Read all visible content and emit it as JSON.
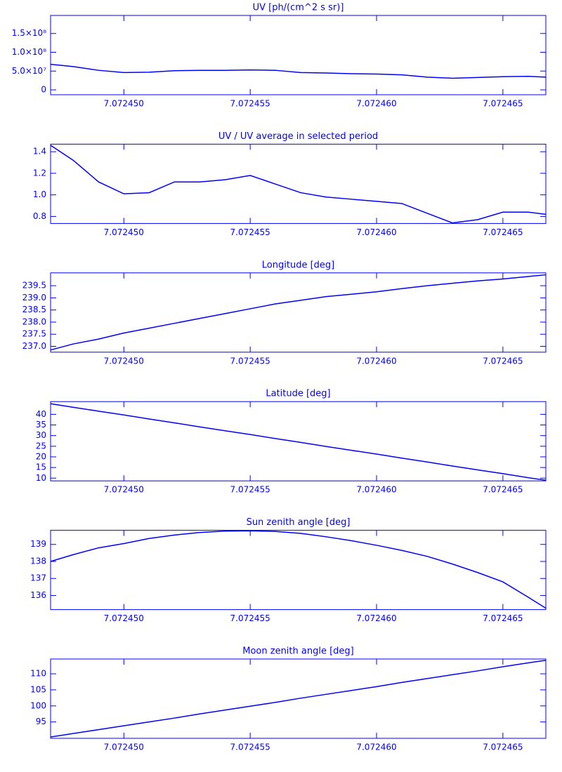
{
  "chart_data": [
    {
      "type": "line",
      "title": "UV [ph/(cm^2 s sr)]",
      "color": "#0000ff",
      "x": [
        7.0724471,
        7.072448,
        7.072449,
        7.07245,
        7.072451,
        7.072452,
        7.072453,
        7.072454,
        7.072455,
        7.072456,
        7.072457,
        7.072458,
        7.072459,
        7.07246,
        7.072461,
        7.072462,
        7.072463,
        7.072464,
        7.072465,
        7.072466,
        7.0724667
      ],
      "values": [
        68000000,
        62000000,
        52000000,
        46000000,
        47000000,
        51000000,
        52000000,
        52000000,
        53000000,
        52000000,
        46000000,
        45000000,
        43000000,
        42000000,
        40000000,
        34000000,
        31000000,
        33000000,
        35000000,
        36000000,
        34000000
      ],
      "xlim": [
        7.0724471,
        7.0724667
      ],
      "xticks": [
        {
          "value": 7.07245,
          "label": "7.072450"
        },
        {
          "value": 7.072455,
          "label": "7.072455"
        },
        {
          "value": 7.07246,
          "label": "7.072460"
        },
        {
          "value": 7.072465,
          "label": "7.072465"
        }
      ],
      "ylim": [
        -13000000,
        198000000
      ],
      "yticks": [
        0,
        {
          "value": 50000000,
          "label": "5.0×10⁷"
        },
        {
          "value": 100000000,
          "label": "1.0×10⁸"
        },
        {
          "value": 150000000,
          "label": "1.5×10⁸"
        }
      ]
    },
    {
      "type": "line",
      "title": "UV / UV average in selected period",
      "color": "#0000ff",
      "x": [
        7.0724471,
        7.072448,
        7.072449,
        7.07245,
        7.072451,
        7.072452,
        7.072453,
        7.072454,
        7.072455,
        7.072456,
        7.072457,
        7.072458,
        7.072459,
        7.07246,
        7.072461,
        7.072462,
        7.072463,
        7.072464,
        7.072465,
        7.072466,
        7.0724667
      ],
      "values": [
        1.46,
        1.32,
        1.12,
        1.01,
        1.02,
        1.12,
        1.12,
        1.14,
        1.18,
        1.1,
        1.02,
        0.98,
        0.96,
        0.94,
        0.92,
        0.83,
        0.74,
        0.77,
        0.84,
        0.84,
        0.82
      ],
      "xlim": [
        7.0724471,
        7.0724667
      ],
      "xticks": [
        {
          "value": 7.07245,
          "label": "7.072450"
        },
        {
          "value": 7.072455,
          "label": "7.072455"
        },
        {
          "value": 7.07246,
          "label": "7.072460"
        },
        {
          "value": 7.072465,
          "label": "7.072465"
        }
      ],
      "ylim": [
        0.735,
        1.47
      ],
      "yticks": [
        0.8,
        {
          "value": 1,
          "label": "1.0"
        },
        1.2,
        1.4
      ]
    },
    {
      "type": "line",
      "title": "Longitude [deg]",
      "color": "#0000ff",
      "x": [
        7.0724471,
        7.072448,
        7.072449,
        7.07245,
        7.072451,
        7.072452,
        7.072453,
        7.072454,
        7.072455,
        7.072456,
        7.072457,
        7.072458,
        7.072459,
        7.07246,
        7.072461,
        7.072462,
        7.072463,
        7.072464,
        7.072465,
        7.072466,
        7.0724667
      ],
      "values": [
        236.85,
        237.1,
        237.3,
        237.55,
        237.75,
        237.95,
        238.15,
        238.35,
        238.55,
        238.75,
        238.9,
        239.05,
        239.15,
        239.25,
        239.38,
        239.5,
        239.6,
        239.7,
        239.78,
        239.88,
        239.95
      ],
      "xlim": [
        7.0724471,
        7.0724667
      ],
      "xticks": [
        {
          "value": 7.07245,
          "label": "7.072450"
        },
        {
          "value": 7.072455,
          "label": "7.072455"
        },
        {
          "value": 7.07246,
          "label": "7.072460"
        },
        {
          "value": 7.072465,
          "label": "7.072465"
        }
      ],
      "ylim": [
        236.76,
        240.03
      ],
      "yticks": [
        {
          "value": 237,
          "label": "237.0"
        },
        237.5,
        {
          "value": 238,
          "label": "238.0"
        },
        238.5,
        {
          "value": 239,
          "label": "239.0"
        },
        239.5
      ]
    },
    {
      "type": "line",
      "title": "Latitude [deg]",
      "color": "#0000ff",
      "x": [
        7.0724471,
        7.072448,
        7.072449,
        7.07245,
        7.072451,
        7.072452,
        7.072453,
        7.072454,
        7.072455,
        7.072456,
        7.072457,
        7.072458,
        7.072459,
        7.07246,
        7.072461,
        7.072462,
        7.072463,
        7.072464,
        7.072465,
        7.072466,
        7.0724667
      ],
      "values": [
        45,
        43.3,
        41.5,
        39.7,
        37.8,
        36,
        34.1,
        32.3,
        30.5,
        28.6,
        26.8,
        24.9,
        23.1,
        21.3,
        19.4,
        17.6,
        15.7,
        13.9,
        12.1,
        10.2,
        9
      ],
      "xlim": [
        7.0724471,
        7.0724667
      ],
      "xticks": [
        {
          "value": 7.07245,
          "label": "7.072450"
        },
        {
          "value": 7.072455,
          "label": "7.072455"
        },
        {
          "value": 7.07246,
          "label": "7.072460"
        },
        {
          "value": 7.072465,
          "label": "7.072465"
        }
      ],
      "ylim": [
        8.7,
        46
      ],
      "yticks": [
        10,
        15,
        20,
        25,
        30,
        35,
        40
      ]
    },
    {
      "type": "line",
      "title": "Sun zenith angle [deg]",
      "color": "#0000ff",
      "x": [
        7.0724471,
        7.072448,
        7.072449,
        7.07245,
        7.072451,
        7.072452,
        7.072453,
        7.072454,
        7.072455,
        7.072456,
        7.072457,
        7.072458,
        7.072459,
        7.07246,
        7.072461,
        7.072462,
        7.072463,
        7.072464,
        7.072465,
        7.072466,
        7.0724667
      ],
      "values": [
        138,
        138.4,
        138.8,
        139.05,
        139.35,
        139.55,
        139.7,
        139.78,
        139.8,
        139.76,
        139.65,
        139.45,
        139.22,
        138.95,
        138.65,
        138.3,
        137.85,
        137.35,
        136.8,
        135.9,
        135.25
      ],
      "xlim": [
        7.0724471,
        7.0724667
      ],
      "xticks": [
        {
          "value": 7.07245,
          "label": "7.072450"
        },
        {
          "value": 7.072455,
          "label": "7.072455"
        },
        {
          "value": 7.07246,
          "label": "7.072460"
        },
        {
          "value": 7.072465,
          "label": "7.072465"
        }
      ],
      "ylim": [
        135.17,
        139.83
      ],
      "yticks": [
        136,
        137,
        138,
        139
      ]
    },
    {
      "type": "line",
      "title": "Moon zenith angle [deg]",
      "color": "#0000ff",
      "x": [
        7.0724471,
        7.072448,
        7.072449,
        7.07245,
        7.072451,
        7.072452,
        7.072453,
        7.072454,
        7.072455,
        7.072456,
        7.072457,
        7.072458,
        7.072459,
        7.07246,
        7.072461,
        7.072462,
        7.072463,
        7.072464,
        7.072465,
        7.072466,
        7.0724667
      ],
      "values": [
        90.3,
        91.4,
        92.6,
        93.8,
        95,
        96.2,
        97.5,
        98.7,
        99.9,
        101.1,
        102.4,
        103.6,
        104.8,
        106,
        107.3,
        108.5,
        109.7,
        110.9,
        112.2,
        113.4,
        114.2
      ],
      "xlim": [
        7.0724471,
        7.0724667
      ],
      "xticks": [
        {
          "value": 7.07245,
          "label": "7.072450"
        },
        {
          "value": 7.072455,
          "label": "7.072455"
        },
        {
          "value": 7.07246,
          "label": "7.072460"
        },
        {
          "value": 7.072465,
          "label": "7.072465"
        }
      ],
      "ylim": [
        89.9,
        114.6
      ],
      "yticks": [
        95,
        100,
        105,
        110
      ]
    }
  ]
}
